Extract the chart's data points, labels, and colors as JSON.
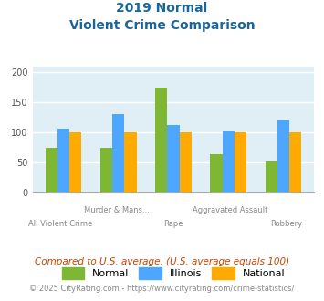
{
  "title_line1": "2019 Normal",
  "title_line2": "Violent Crime Comparison",
  "categories": [
    "All Violent Crime",
    "Murder & Mans...",
    "Rape",
    "Aggravated Assault",
    "Robbery"
  ],
  "cat_labels_top": [
    "",
    "Murder & Mans...",
    "",
    "Aggravated Assault",
    ""
  ],
  "cat_labels_bot": [
    "All Violent Crime",
    "",
    "Rape",
    "",
    "Robbery"
  ],
  "normal_values": [
    74,
    74,
    175,
    64,
    52
  ],
  "illinois_values": [
    107,
    130,
    113,
    102,
    120
  ],
  "national_values": [
    100,
    100,
    100,
    100,
    100
  ],
  "color_normal": "#7db733",
  "color_illinois": "#4da6ff",
  "color_national": "#ffaa00",
  "ylim": [
    0,
    210
  ],
  "yticks": [
    0,
    50,
    100,
    150,
    200
  ],
  "background_color": "#e0eff5",
  "title_color": "#1a6699",
  "legend_labels": [
    "Normal",
    "Illinois",
    "National"
  ],
  "footnote1": "Compared to U.S. average. (U.S. average equals 100)",
  "footnote2": "© 2025 CityRating.com - https://www.cityrating.com/crime-statistics/",
  "footnote1_color": "#cc4400",
  "footnote2_color": "#888888"
}
